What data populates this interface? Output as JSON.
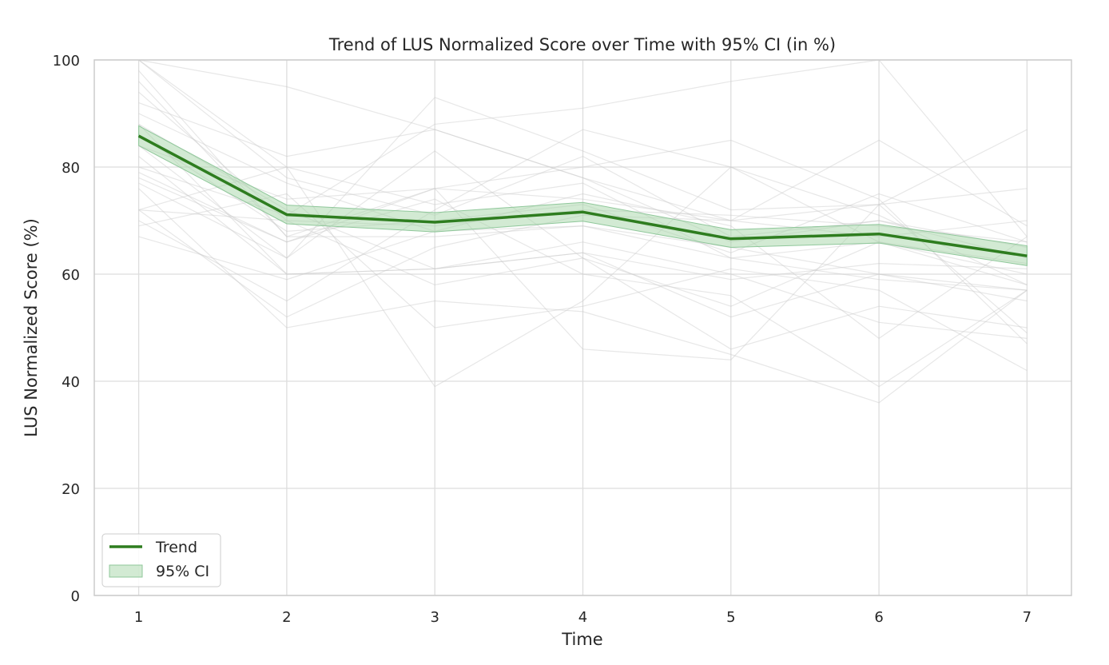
{
  "chart_data": {
    "type": "line",
    "title": "Trend of LUS Normalized Score over Time with 95% CI (in %)",
    "xlabel": "Time",
    "ylabel": "LUS Normalized Score (%)",
    "x": [
      1,
      2,
      3,
      4,
      5,
      6,
      7
    ],
    "xlim": [
      0.7,
      7.3
    ],
    "ylim": [
      0,
      100
    ],
    "yticks": [
      0,
      20,
      40,
      60,
      80,
      100
    ],
    "xticks": [
      1,
      2,
      3,
      4,
      5,
      6,
      7
    ],
    "grid": true,
    "legend_position": "lower-left",
    "trend": {
      "name": "Trend",
      "color": "#2e7d1f",
      "values": [
        85.8,
        71.1,
        69.7,
        71.6,
        66.6,
        67.5,
        63.4
      ]
    },
    "ci": {
      "name": "95% CI",
      "color": "#a5d6a7",
      "lower": [
        84.0,
        69.4,
        67.9,
        69.9,
        65.0,
        65.8,
        61.6
      ],
      "upper": [
        87.7,
        72.9,
        71.5,
        73.4,
        68.3,
        69.3,
        65.3
      ]
    },
    "individual_series_color": "#c9c9c9",
    "individual_series": [
      [
        100,
        95,
        87,
        78,
        66,
        70,
        63
      ],
      [
        100,
        80,
        73,
        77,
        63,
        59,
        57
      ],
      [
        96,
        67,
        76,
        74,
        70,
        73,
        76
      ],
      [
        94,
        70,
        58,
        63,
        54,
        66,
        58
      ],
      [
        92,
        82,
        87,
        78,
        70,
        85,
        69
      ],
      [
        90,
        77,
        68,
        69,
        63,
        66,
        60
      ],
      [
        88,
        72,
        61,
        64,
        52,
        60,
        57
      ],
      [
        86,
        68,
        70,
        73,
        64,
        75,
        66
      ],
      [
        84,
        74,
        76,
        80,
        85,
        74,
        47
      ],
      [
        82,
        60,
        61,
        66,
        60,
        51,
        48
      ],
      [
        80,
        71,
        88,
        91,
        96,
        100,
        67
      ],
      [
        78,
        66,
        74,
        60,
        56,
        39,
        57
      ],
      [
        77,
        63,
        93,
        83,
        72,
        73,
        87
      ],
      [
        76,
        50,
        55,
        53,
        45,
        36,
        57
      ],
      [
        72,
        80,
        39,
        55,
        80,
        71,
        58
      ],
      [
        72,
        70,
        69,
        72,
        71,
        69,
        66
      ],
      [
        70,
        55,
        72,
        87,
        80,
        66,
        62
      ],
      [
        69,
        75,
        50,
        54,
        61,
        57,
        42
      ],
      [
        67,
        59,
        68,
        75,
        69,
        48,
        67
      ],
      [
        100,
        78,
        71,
        82,
        67,
        70,
        65
      ],
      [
        98,
        67,
        67,
        69,
        65,
        60,
        55
      ],
      [
        88,
        60,
        61,
        64,
        59,
        62,
        61
      ],
      [
        72,
        52,
        65,
        71,
        70,
        67,
        70
      ],
      [
        84,
        63,
        83,
        63,
        46,
        54,
        50
      ],
      [
        79,
        66,
        76,
        46,
        44,
        73,
        49
      ]
    ]
  }
}
